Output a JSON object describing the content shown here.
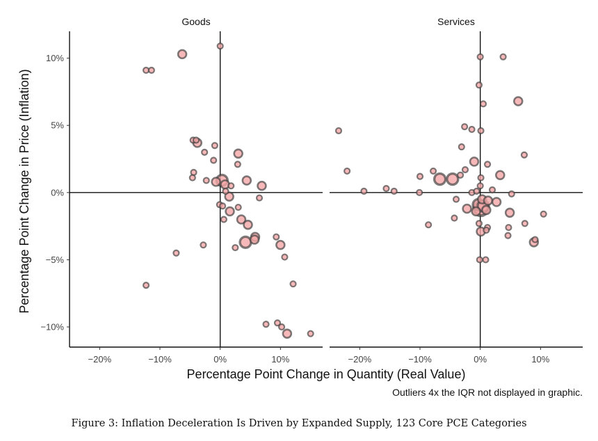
{
  "chart_data": {
    "type": "scatter",
    "xlabel": "Percentage Point Change in Quantity (Real Value)",
    "ylabel": "Percentage Point Change in Price (Inflation)",
    "note": "Outliers 4x the IQR not displayed in graphic.",
    "caption": "Figure 3: Inflation Deceleration Is Driven by Expanded Supply, 123 Core PCE Categories",
    "xlim": [
      -25,
      17
    ],
    "ylim": [
      -11.5,
      12
    ],
    "x_ticks": [
      -20,
      -10,
      0,
      10
    ],
    "x_tick_labels": [
      "−20%",
      "−10%",
      "0%",
      "10%"
    ],
    "y_ticks": [
      10,
      5,
      0,
      -5,
      -10
    ],
    "y_tick_labels": [
      "10%",
      "5%",
      "0%",
      "−5%",
      "−10%"
    ],
    "colors": {
      "fill": "#f4a6a6",
      "stroke": "#3a3a3a"
    },
    "panels": [
      {
        "title": "Goods",
        "points": [
          {
            "x": 0,
            "y": 10.9,
            "s": 1
          },
          {
            "x": -6.3,
            "y": 10.3,
            "s": 2
          },
          {
            "x": -12.3,
            "y": 9.1,
            "s": 1
          },
          {
            "x": -11.4,
            "y": 9.1,
            "s": 1
          },
          {
            "x": -4.5,
            "y": 3.9,
            "s": 1
          },
          {
            "x": -3.8,
            "y": 3.7,
            "s": 2
          },
          {
            "x": -4,
            "y": 3.9,
            "s": 1
          },
          {
            "x": -0.9,
            "y": 3.5,
            "s": 1
          },
          {
            "x": -2.6,
            "y": 3.0,
            "s": 1
          },
          {
            "x": 3,
            "y": 2.9,
            "s": 2
          },
          {
            "x": -1.1,
            "y": 2.4,
            "s": 1
          },
          {
            "x": 2.9,
            "y": 2.1,
            "s": 1
          },
          {
            "x": -4.4,
            "y": 1.5,
            "s": 1
          },
          {
            "x": -4.6,
            "y": 1.1,
            "s": 1
          },
          {
            "x": -2.3,
            "y": 0.9,
            "s": 1
          },
          {
            "x": -0.7,
            "y": 0.8,
            "s": 2
          },
          {
            "x": 0.3,
            "y": 0.9,
            "s": 3
          },
          {
            "x": 0.8,
            "y": 0.6,
            "s": 2
          },
          {
            "x": 4.4,
            "y": 0.9,
            "s": 2
          },
          {
            "x": 1.8,
            "y": 0.5,
            "s": 1
          },
          {
            "x": 6.9,
            "y": 0.5,
            "s": 2
          },
          {
            "x": 0.9,
            "y": 0.1,
            "s": 1
          },
          {
            "x": 1.5,
            "y": -0.3,
            "s": 2
          },
          {
            "x": 6.5,
            "y": -0.4,
            "s": 1
          },
          {
            "x": -0.1,
            "y": -0.9,
            "s": 1
          },
          {
            "x": 0.4,
            "y": -1.0,
            "s": 1
          },
          {
            "x": 3,
            "y": -1.1,
            "s": 1
          },
          {
            "x": 1.6,
            "y": -1.4,
            "s": 2
          },
          {
            "x": 0.6,
            "y": -2.0,
            "s": 1
          },
          {
            "x": 3.5,
            "y": -2.0,
            "s": 2
          },
          {
            "x": 4.6,
            "y": -2.4,
            "s": 2
          },
          {
            "x": 5.8,
            "y": -3.3,
            "s": 2
          },
          {
            "x": 5.7,
            "y": -3.5,
            "s": 2
          },
          {
            "x": 9.3,
            "y": -3.3,
            "s": 1
          },
          {
            "x": 10.0,
            "y": -3.9,
            "s": 2
          },
          {
            "x": 4.2,
            "y": -3.7,
            "s": 3
          },
          {
            "x": 2.5,
            "y": -4.1,
            "s": 1
          },
          {
            "x": -2.8,
            "y": -3.9,
            "s": 1
          },
          {
            "x": -7.3,
            "y": -4.5,
            "s": 1
          },
          {
            "x": 10.7,
            "y": -4.8,
            "s": 1
          },
          {
            "x": -12.3,
            "y": -6.9,
            "s": 1
          },
          {
            "x": 12.1,
            "y": -6.8,
            "s": 1
          },
          {
            "x": 7.6,
            "y": -9.8,
            "s": 1
          },
          {
            "x": 9.5,
            "y": -9.7,
            "s": 1
          },
          {
            "x": 10.2,
            "y": -10.0,
            "s": 1
          },
          {
            "x": 11.1,
            "y": -10.5,
            "s": 2
          },
          {
            "x": 15.0,
            "y": -10.5,
            "s": 1
          }
        ]
      },
      {
        "title": "Services",
        "points": [
          {
            "x": 0,
            "y": 10.1,
            "s": 1
          },
          {
            "x": 3.8,
            "y": 10.1,
            "s": 1
          },
          {
            "x": -0.2,
            "y": 8.0,
            "s": 1
          },
          {
            "x": 6.3,
            "y": 6.8,
            "s": 2
          },
          {
            "x": 0.5,
            "y": 6.6,
            "s": 1
          },
          {
            "x": -23.5,
            "y": 4.6,
            "s": 1
          },
          {
            "x": -2.6,
            "y": 4.9,
            "s": 1
          },
          {
            "x": -1.4,
            "y": 4.7,
            "s": 1
          },
          {
            "x": 0.1,
            "y": 4.6,
            "s": 1
          },
          {
            "x": -3.1,
            "y": 3.4,
            "s": 1
          },
          {
            "x": 7.3,
            "y": 2.8,
            "s": 1
          },
          {
            "x": -1,
            "y": 2.3,
            "s": 2
          },
          {
            "x": 1.2,
            "y": 2.1,
            "s": 1
          },
          {
            "x": -22.1,
            "y": 1.6,
            "s": 1
          },
          {
            "x": -7.8,
            "y": 1.6,
            "s": 1
          },
          {
            "x": -2.5,
            "y": 1.7,
            "s": 1
          },
          {
            "x": -4.6,
            "y": 1.0,
            "s": 3
          },
          {
            "x": -6.7,
            "y": 1.0,
            "s": 3
          },
          {
            "x": -3.3,
            "y": 1.3,
            "s": 1
          },
          {
            "x": -10.0,
            "y": 1.2,
            "s": 1
          },
          {
            "x": 3.3,
            "y": 1.3,
            "s": 2
          },
          {
            "x": 0.1,
            "y": 1.1,
            "s": 1
          },
          {
            "x": -19.3,
            "y": 0.1,
            "s": 1
          },
          {
            "x": -15.6,
            "y": 0.3,
            "s": 1
          },
          {
            "x": -14.3,
            "y": 0.1,
            "s": 1
          },
          {
            "x": -10.1,
            "y": 0.0,
            "s": 1
          },
          {
            "x": -1.4,
            "y": 0.0,
            "s": 1
          },
          {
            "x": 2.0,
            "y": 0.2,
            "s": 1
          },
          {
            "x": 5.2,
            "y": -0.1,
            "s": 1
          },
          {
            "x": 0,
            "y": 0.5,
            "s": 1
          },
          {
            "x": -0.6,
            "y": 0.1,
            "s": 1
          },
          {
            "x": -4.0,
            "y": -0.5,
            "s": 1
          },
          {
            "x": 0.3,
            "y": -0.5,
            "s": 2
          },
          {
            "x": 1.3,
            "y": -0.6,
            "s": 2
          },
          {
            "x": 2.7,
            "y": -0.7,
            "s": 2
          },
          {
            "x": -0.3,
            "y": -0.9,
            "s": 3
          },
          {
            "x": 0.5,
            "y": -1.0,
            "s": 3
          },
          {
            "x": 0.1,
            "y": -1.2,
            "s": 4
          },
          {
            "x": -2.2,
            "y": -1.2,
            "s": 2
          },
          {
            "x": -0.7,
            "y": -1.4,
            "s": 2
          },
          {
            "x": 1.0,
            "y": -1.3,
            "s": 2
          },
          {
            "x": 4.9,
            "y": -1.5,
            "s": 2
          },
          {
            "x": 10.5,
            "y": -1.6,
            "s": 1
          },
          {
            "x": -8.6,
            "y": -2.4,
            "s": 1
          },
          {
            "x": -4.3,
            "y": -1.9,
            "s": 1
          },
          {
            "x": -0.2,
            "y": -2.3,
            "s": 1
          },
          {
            "x": 7.4,
            "y": -2.3,
            "s": 1
          },
          {
            "x": 1.2,
            "y": -2.6,
            "s": 1
          },
          {
            "x": 4.7,
            "y": -2.6,
            "s": 1
          },
          {
            "x": 0.1,
            "y": -2.9,
            "s": 2
          },
          {
            "x": 1.0,
            "y": -2.8,
            "s": 1
          },
          {
            "x": 4.6,
            "y": -3.2,
            "s": 1
          },
          {
            "x": 8.9,
            "y": -3.7,
            "s": 2
          },
          {
            "x": 9.1,
            "y": -3.5,
            "s": 1
          },
          {
            "x": -0.1,
            "y": -5.0,
            "s": 1
          },
          {
            "x": 0.9,
            "y": -5.0,
            "s": 1
          }
        ]
      }
    ]
  }
}
